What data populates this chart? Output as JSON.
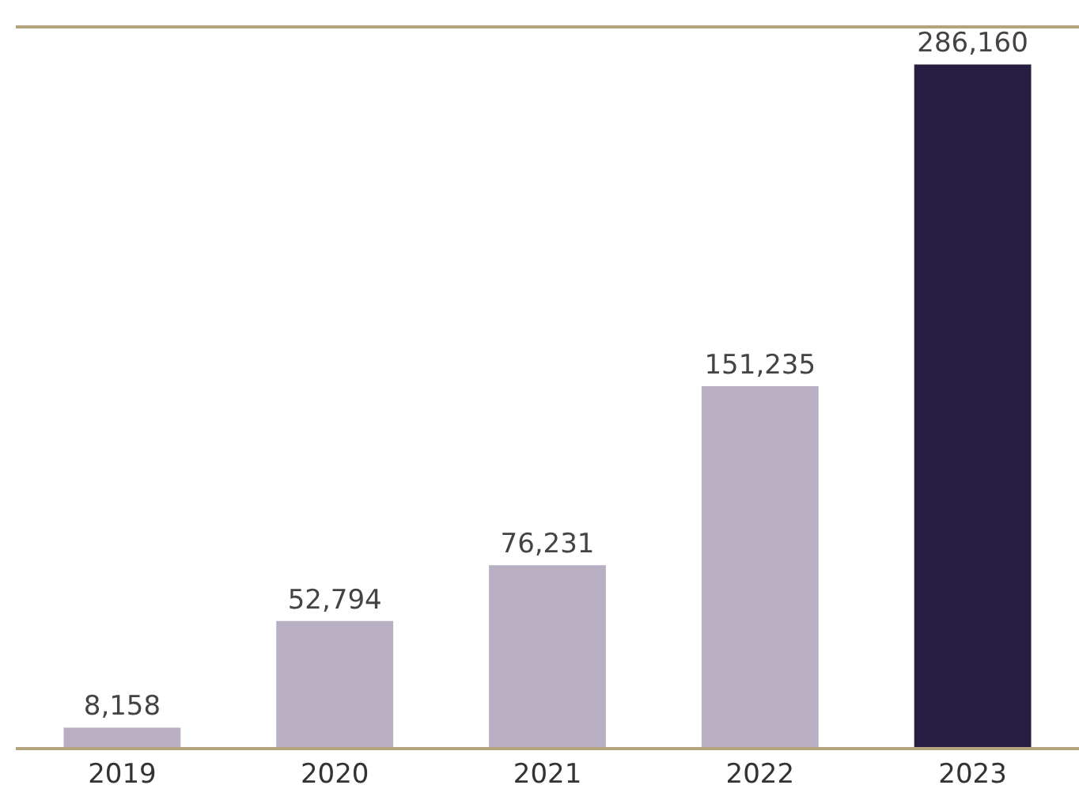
{
  "chart_data": {
    "type": "bar",
    "categories": [
      "2019",
      "2020",
      "2021",
      "2022",
      "2023"
    ],
    "values": [
      8158,
      52794,
      76231,
      151235,
      286160
    ],
    "value_labels": [
      "8,158",
      "52,794",
      "76,231",
      "151,235",
      "286,160"
    ],
    "colors": [
      "#b8afc2",
      "#b8afc2",
      "#b8afc2",
      "#b8afc2",
      "#281e42"
    ]
  }
}
